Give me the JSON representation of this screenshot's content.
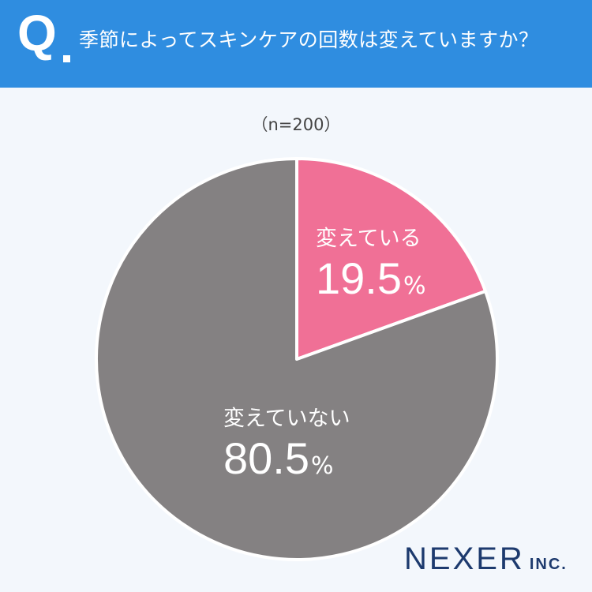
{
  "header": {
    "q_mark": "Q",
    "question": "季節によってスキンケアの回数は変えていますか？"
  },
  "chart_data": {
    "type": "pie",
    "sample": "（n=200）",
    "slices": [
      {
        "label": "変えている",
        "value": 19.5,
        "display": "19.5",
        "unit": "%",
        "color": "#f07096"
      },
      {
        "label": "変えていない",
        "value": 80.5,
        "display": "80.5",
        "unit": "%",
        "color": "#848182"
      }
    ]
  },
  "footer": {
    "logo_main": "NEXER",
    "logo_sub": "INC."
  }
}
